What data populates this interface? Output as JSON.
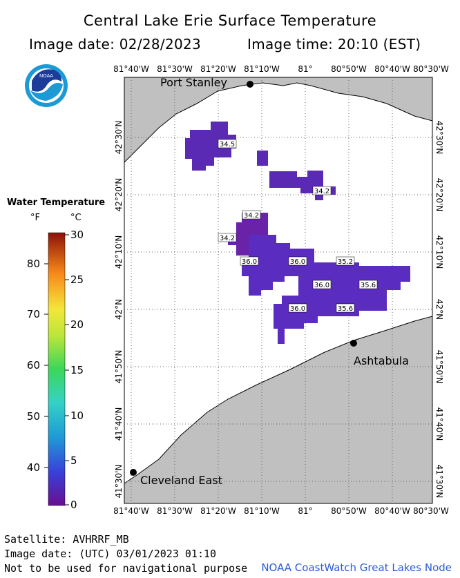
{
  "header": {
    "title": "Central Lake Erie Surface Temperature",
    "image_date": "Image date: 02/28/2023",
    "image_time": "Image time: 20:10 (EST)"
  },
  "logo": {
    "text": "NOAA"
  },
  "axes": {
    "longitudes": [
      "81°40'W",
      "81°30'W",
      "81°20'W",
      "81°10'W",
      "81°",
      "80°50'W",
      "80°40'W",
      "80°30'W"
    ],
    "latitudes": [
      "42°30'N",
      "42°20'N",
      "42°10'N",
      "42°N",
      "41°50'N",
      "41°40'N",
      "41°30'N"
    ]
  },
  "places": {
    "port_stanley": "Port Stanley",
    "ashtabula": "Ashtabula",
    "cleveland_east": "Cleveland East"
  },
  "temps": {
    "t1": "34.5",
    "t2": "34.2",
    "t3": "34.2",
    "t4": "34.2",
    "t5": "36.0",
    "t6": "36.0",
    "t7": "35.2",
    "t8": "36.0",
    "t9": "35.6",
    "t10": "36.0",
    "t11": "35.6"
  },
  "legend": {
    "title": "Water Temperature",
    "unit_f": "°F",
    "unit_c": "°C",
    "f_ticks": [
      "80",
      "70",
      "60",
      "50",
      "40"
    ],
    "c_ticks": [
      "30",
      "25",
      "20",
      "15",
      "10",
      "5",
      "0"
    ]
  },
  "footer": {
    "satellite": "Satellite: AVHRRF_MB",
    "utc_date": "Image date: (UTC) 03/01/2023  01:10",
    "disclaimer": "Not to be used for navigational purpose",
    "credit": "NOAA CoastWatch Great Lakes Node"
  },
  "colors": {
    "land": "#c0c0c0",
    "water_temp": "#5a2cc0",
    "water_cold": "#6a1fa8",
    "credit": "#2a5bd7"
  }
}
